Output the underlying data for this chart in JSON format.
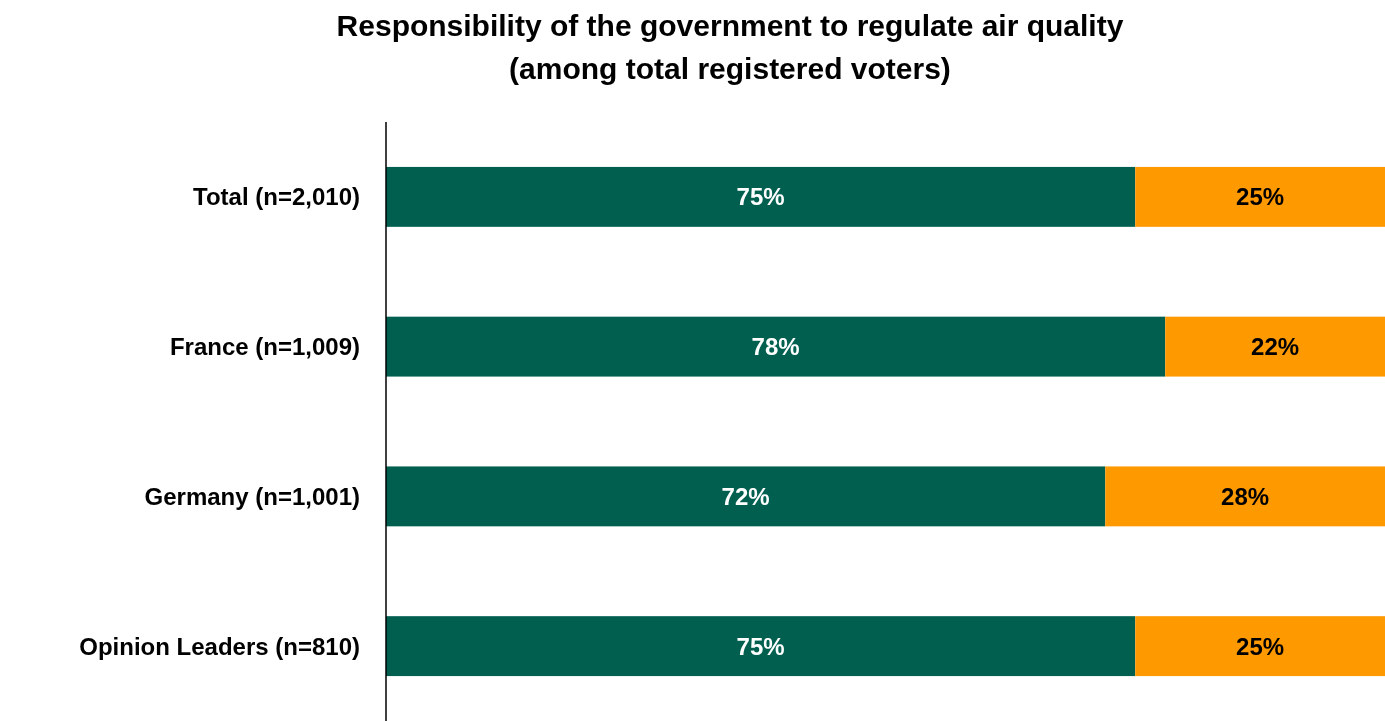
{
  "chart_data": {
    "type": "bar",
    "title": "Responsibility of the government to regulate air quality\n(among total registered voters)",
    "orientation": "horizontal",
    "stacked": true,
    "data_labels": true,
    "tick_labels": "y",
    "categories": [
      "Total (n=2,010)",
      "France (n=1,009)",
      "Germany (n=1,001)",
      "Opinion Leaders (n=810)"
    ],
    "series": [
      {
        "color": "#005f4f",
        "values": [
          75,
          78,
          72,
          75
        ],
        "value_labels": [
          "75%",
          "78%",
          "72%",
          "75%"
        ]
      },
      {
        "color": "#ff9900",
        "values": [
          25,
          22,
          28,
          25
        ],
        "value_labels": [
          "25%",
          "22%",
          "28%",
          "25%"
        ]
      }
    ]
  }
}
